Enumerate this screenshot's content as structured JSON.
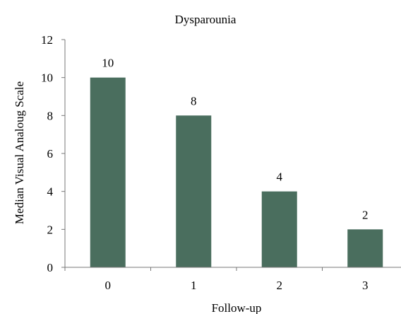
{
  "chart_data": {
    "type": "bar",
    "title": "Dysparounia",
    "xlabel": "Follow-up",
    "ylabel": "Median Visual Analoug Scale",
    "categories": [
      "0",
      "1",
      "2",
      "3"
    ],
    "values": [
      10,
      8,
      4,
      2
    ],
    "data_labels": [
      "10",
      "8",
      "4",
      "2"
    ],
    "ylim": [
      0,
      12
    ],
    "yticks": [
      "0",
      "2",
      "4",
      "6",
      "8",
      "10",
      "12"
    ],
    "grid": false,
    "legend": "none",
    "bar_color": "#4a6e5e",
    "axis_color": "#777777"
  }
}
